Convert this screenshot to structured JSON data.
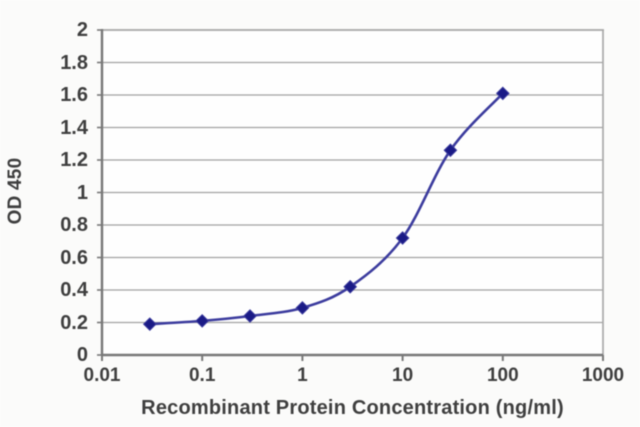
{
  "chart_data": {
    "type": "line",
    "title": "",
    "xlabel": "Recombinant Protein Concentration (ng/ml)",
    "ylabel": "OD 450",
    "x_scale": "log",
    "x": [
      0.03,
      0.1,
      0.3,
      1,
      3,
      10,
      30,
      100
    ],
    "values": [
      0.19,
      0.21,
      0.24,
      0.29,
      0.42,
      0.72,
      1.26,
      1.61
    ],
    "series": [
      {
        "name": "OD 450",
        "values": [
          0.19,
          0.21,
          0.24,
          0.29,
          0.42,
          0.72,
          1.26,
          1.61
        ]
      }
    ],
    "xlim": [
      0.01,
      1000
    ],
    "ylim": [
      0,
      2
    ],
    "x_tick_values": [
      0.01,
      0.1,
      1,
      10,
      100,
      1000
    ],
    "x_tick_labels": [
      "0.01",
      "0.1",
      "1",
      "10",
      "100",
      "1000"
    ],
    "y_tick_values": [
      0,
      0.2,
      0.4,
      0.6,
      0.8,
      1,
      1.2,
      1.4,
      1.6,
      1.8,
      2
    ],
    "y_tick_labels": [
      "0",
      "0.2",
      "0.4",
      "0.6",
      "0.8",
      "1",
      "1.2",
      "1.4",
      "1.6",
      "1.8",
      "2"
    ],
    "grid": "horizontal",
    "legend": "none",
    "marker": "diamond",
    "colors": {
      "line": "#3c3c9e",
      "marker": "#1b1b86",
      "grid": "#a3a3a3",
      "axis": "#787878",
      "plot_border": "#a9a9a9",
      "text": "#3f3f3f",
      "background": "#fbfbfa",
      "plot_background": "#fefefe"
    }
  }
}
